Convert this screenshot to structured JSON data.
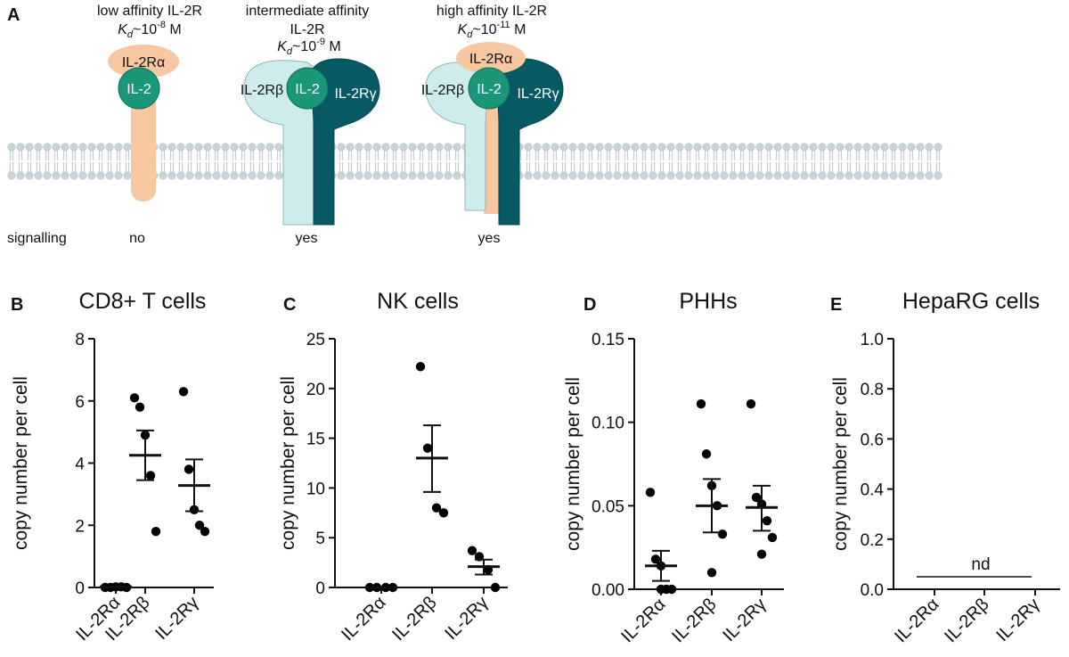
{
  "panel_a": {
    "label": "A",
    "receptors": [
      {
        "title_1": "low affinity IL-2R",
        "kd_text": "~10",
        "kd_exp": "-8",
        "kd_unit": " M",
        "subunits": [
          "IL-2Rα",
          "IL-2"
        ],
        "signalling": "no"
      },
      {
        "title_1": "intermediate affinity",
        "title_2": "IL-2R",
        "kd_text": "~10",
        "kd_exp": "-9",
        "kd_unit": " M",
        "subunits": [
          "IL-2Rβ",
          "IL-2",
          "IL-2Rγ"
        ],
        "signalling": "yes"
      },
      {
        "title_1": "high affinity IL-2R",
        "kd_text": "~10",
        "kd_exp": "-11",
        "kd_unit": " M",
        "subunits": [
          "IL-2Rα",
          "IL-2Rβ",
          "IL-2",
          "IL-2Rγ"
        ],
        "signalling": "yes"
      }
    ],
    "kd_symbol": "K",
    "kd_sub": "d",
    "signalling_label": "signalling",
    "colors": {
      "alpha": "#f6c7a0",
      "il2": "#1a9678",
      "beta": "#cfeced",
      "gamma": "#075963",
      "membrane": "#c6d2d6"
    }
  },
  "chart_data": [
    {
      "panel": "B",
      "type": "scatter",
      "title": "CD8+ T cells",
      "ylabel": "copy number per cell",
      "ylim": [
        0,
        8
      ],
      "yticks": [
        "0",
        "2",
        "4",
        "6",
        "8"
      ],
      "categories": [
        "IL-2Rα",
        "IL-2Rβ",
        "IL-2Rγ"
      ],
      "points": [
        [
          0.0,
          0.0,
          0.02,
          0.02,
          0.0
        ],
        [
          6.1,
          5.8,
          4.9,
          3.6,
          1.8
        ],
        [
          6.3,
          3.8,
          2.5,
          2.0,
          1.8
        ]
      ],
      "mean": [
        0.02,
        4.25,
        3.28
      ],
      "sem_low": [
        0.02,
        3.45,
        2.45
      ],
      "sem_high": [
        0.02,
        5.05,
        4.12
      ],
      "annotation": ""
    },
    {
      "panel": "C",
      "type": "scatter",
      "title": "NK cells",
      "ylabel": "copy number per cell",
      "ylim": [
        0,
        25
      ],
      "yticks": [
        "0",
        "5",
        "10",
        "15",
        "20",
        "25"
      ],
      "categories": [
        "IL-2Rα",
        "IL-2Rβ",
        "IL-2Rγ"
      ],
      "points": [
        [
          0,
          0,
          0,
          0
        ],
        [
          22.2,
          14.0,
          8.0,
          7.5
        ],
        [
          3.7,
          3.1,
          1.8,
          0.0
        ]
      ],
      "mean": [
        0,
        13.0,
        2.1
      ],
      "sem_low": [
        0,
        9.6,
        1.3
      ],
      "sem_high": [
        0,
        16.3,
        2.8
      ],
      "annotation": ""
    },
    {
      "panel": "D",
      "type": "scatter",
      "title": "PHHs",
      "ylabel": "copy number per cell",
      "ylim": [
        0,
        0.15
      ],
      "yticks": [
        "0.00",
        "0.05",
        "0.10",
        "0.15"
      ],
      "categories": [
        "IL-2Rα",
        "IL-2Rβ",
        "IL-2Rγ"
      ],
      "points": [
        [
          0.058,
          0.018,
          0.014,
          0.0,
          0.0,
          0.0
        ],
        [
          0.111,
          0.081,
          0.062,
          0.05,
          0.033,
          0.01
        ],
        [
          0.111,
          0.055,
          0.051,
          0.041,
          0.031,
          0.021
        ]
      ],
      "mean": [
        0.014,
        0.05,
        0.049
      ],
      "sem_low": [
        0.005,
        0.034,
        0.035
      ],
      "sem_high": [
        0.023,
        0.066,
        0.062
      ],
      "annotation": ""
    },
    {
      "panel": "E",
      "type": "scatter",
      "title": "HepaRG cells",
      "ylabel": "copy number per cell",
      "ylim": [
        0,
        1.0
      ],
      "yticks": [
        "0.0",
        "0.2",
        "0.4",
        "0.6",
        "0.8",
        "1.0"
      ],
      "categories": [
        "IL-2Rα",
        "IL-2Rβ",
        "IL-2Rγ"
      ],
      "points": [
        [],
        [],
        []
      ],
      "mean": [],
      "sem_low": [],
      "sem_high": [],
      "annotation": "nd"
    }
  ]
}
